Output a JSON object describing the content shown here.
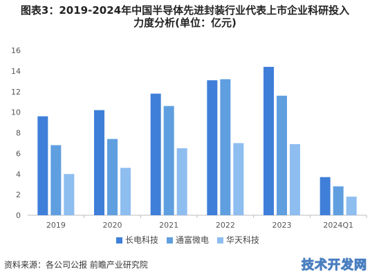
{
  "title_line1": "图表3：2019-2024年中国半导体先进封装行业代表上市企业科研投入",
  "title_line2": "力度分析(单位：亿元)",
  "source": "资料来源：各公司公报 前瞻产业研究院",
  "watermark": "技术开发网",
  "chart_data": {
    "type": "bar",
    "title": "图表3：2019-2024年中国半导体先进封装行业代表上市企业科研投入力度分析(单位：亿元)",
    "categories": [
      "2019",
      "2020",
      "2021",
      "2022",
      "2023",
      "2024Q1"
    ],
    "series": [
      {
        "name": "长电科技",
        "color": "#3f7fd9",
        "values": [
          9.6,
          10.2,
          11.8,
          13.1,
          14.4,
          3.7
        ]
      },
      {
        "name": "通富微电",
        "color": "#5f9fe0",
        "values": [
          6.8,
          7.4,
          10.6,
          13.2,
          11.6,
          2.8
        ]
      },
      {
        "name": "华天科技",
        "color": "#8ebdf0",
        "values": [
          4.0,
          4.6,
          6.5,
          7.0,
          6.9,
          1.8
        ]
      }
    ],
    "yticks": [
      "0",
      "2",
      "4",
      "6",
      "8",
      "10",
      "12",
      "14",
      "16"
    ],
    "ylim": [
      0,
      16
    ],
    "grid": false,
    "legend": "bottom"
  }
}
